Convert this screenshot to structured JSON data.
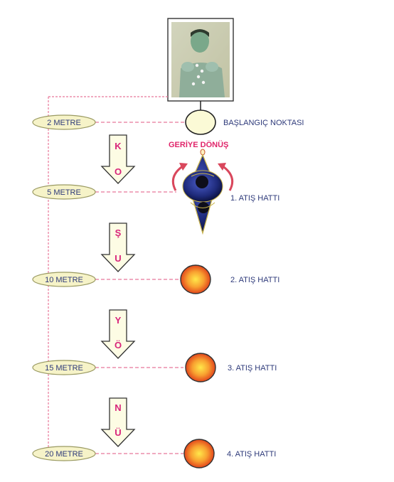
{
  "distances": [
    "2 METRE",
    "5 METRE",
    "10 METRE",
    "15 METRE",
    "20 METRE"
  ],
  "start_label": "BAŞLANGIÇ NOKTASI",
  "turn_label": "GERİYE DÖNÜŞ",
  "lines": [
    "1. ATIŞ HATTI",
    "2. ATIŞ HATTI",
    "3. ATIŞ HATTI",
    "4. ATIŞ HATTI"
  ],
  "arrow_letters": [
    [
      "K",
      "O"
    ],
    [
      "Ş",
      "U"
    ],
    [
      "Y",
      "Ö"
    ],
    [
      "N",
      "Ü"
    ]
  ],
  "colors": {
    "dash": "#e8789a",
    "pill_fill": "#f6f3c8",
    "pill_stroke": "#9a9a62",
    "label_text": "#2e3a7a",
    "arrow_letter": "#d8247a",
    "turn_text": "#e0246a",
    "target_outer": "#e8531f",
    "target_inner": "#ffe04a",
    "start_circle": "#fbfad6"
  }
}
